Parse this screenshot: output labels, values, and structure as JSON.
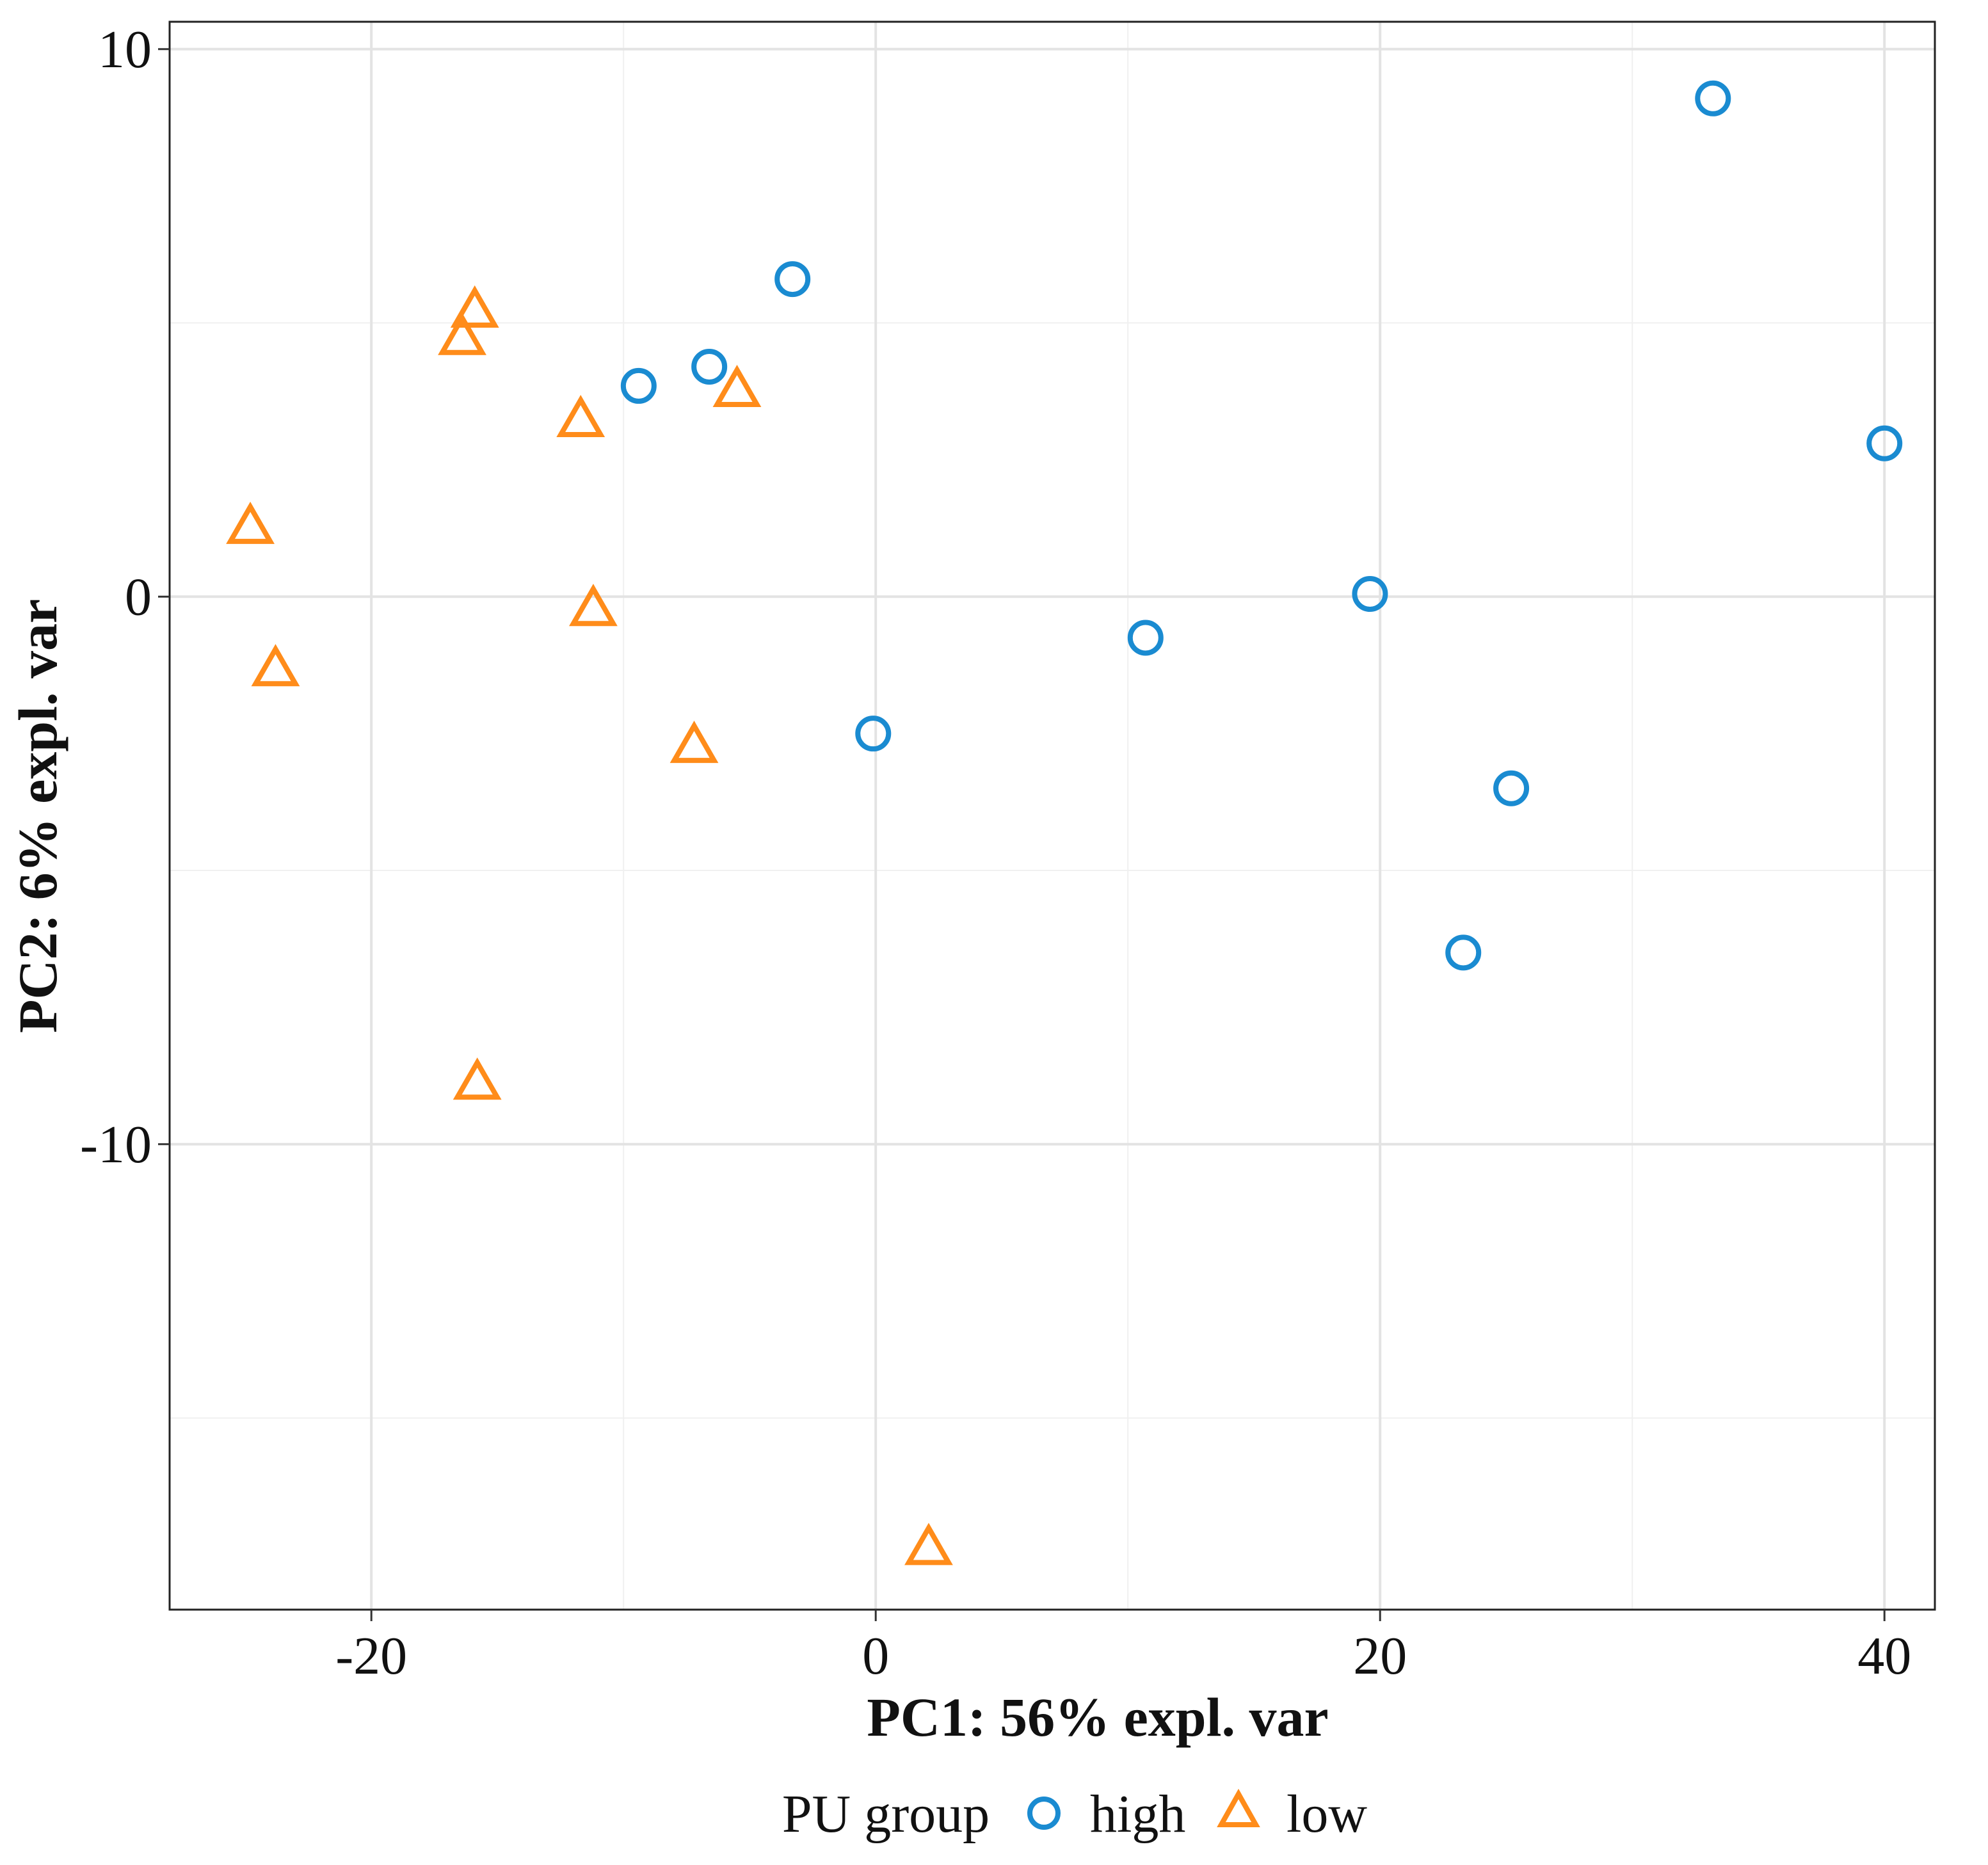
{
  "chart_data": {
    "type": "scatter",
    "title": "",
    "xlabel": "PC1: 56% expl. var",
    "ylabel": "PC2: 6% expl. var",
    "xlim": [
      -28,
      42
    ],
    "ylim": [
      -18.5,
      10.5
    ],
    "x_ticks": [
      -20,
      0,
      20,
      40
    ],
    "x_tick_labels": [
      "-20",
      "0",
      "20",
      "40"
    ],
    "y_ticks": [
      10,
      0,
      -10
    ],
    "y_tick_labels": [
      "10",
      "0",
      "-10"
    ],
    "x_minor_grid": [
      -10,
      10,
      30
    ],
    "y_minor_grid": [
      5,
      -5,
      -15
    ],
    "grid": true,
    "legend": {
      "title": "PU group",
      "position": "bottom",
      "entries": [
        {
          "label": "high",
          "shape": "circle",
          "color": "#1a8bd1"
        },
        {
          "label": "low",
          "shape": "triangle",
          "color": "#ff8c1a"
        }
      ]
    },
    "series": [
      {
        "name": "high",
        "shape": "circle",
        "color": "#1a8bd1",
        "points": [
          {
            "x": 33.2,
            "y": 9.1
          },
          {
            "x": -3.3,
            "y": 5.8
          },
          {
            "x": -6.6,
            "y": 4.2
          },
          {
            "x": -9.4,
            "y": 3.85
          },
          {
            "x": 40.0,
            "y": 2.8
          },
          {
            "x": 19.6,
            "y": 0.05
          },
          {
            "x": 10.7,
            "y": -0.75
          },
          {
            "x": -0.1,
            "y": -2.5
          },
          {
            "x": 25.2,
            "y": -3.5
          },
          {
            "x": 23.3,
            "y": -6.5
          }
        ]
      },
      {
        "name": "low",
        "shape": "triangle",
        "color": "#ff8c1a",
        "points": [
          {
            "x": -15.9,
            "y": 5.2
          },
          {
            "x": -16.4,
            "y": 4.7
          },
          {
            "x": -5.5,
            "y": 3.75
          },
          {
            "x": -11.7,
            "y": 3.2
          },
          {
            "x": -24.8,
            "y": 1.25
          },
          {
            "x": -11.2,
            "y": -0.25
          },
          {
            "x": -23.8,
            "y": -1.35
          },
          {
            "x": -7.2,
            "y": -2.75
          },
          {
            "x": -15.8,
            "y": -8.9
          },
          {
            "x": 2.1,
            "y": -17.4
          }
        ]
      }
    ]
  }
}
